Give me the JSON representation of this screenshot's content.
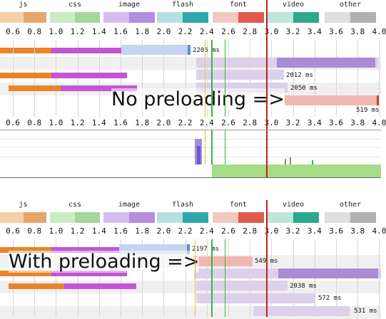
{
  "legend": [
    {
      "label": "js",
      "a": "#f5cfa6",
      "b": "#e8a56b"
    },
    {
      "label": "css",
      "a": "#c9ecc3",
      "b": "#a5d69b"
    },
    {
      "label": "image",
      "a": "#d6bdf0",
      "b": "#b48ce0"
    },
    {
      "label": "flash",
      "a": "#b4e0e2",
      "b": "#2ea8ad"
    },
    {
      "label": "font",
      "a": "#f3c8c2",
      "b": "#e15a4e"
    },
    {
      "label": "video",
      "a": "#bde5d8",
      "b": "#2ea88a"
    },
    {
      "label": "other",
      "a": "#dedede",
      "b": "#b0b0b0"
    }
  ],
  "ticks": [
    "0.6",
    "0.8",
    "1.0",
    "1.2",
    "1.4",
    "1.6",
    "1.8",
    "2.0",
    "2.2",
    "2.4",
    "2.6",
    "2.8",
    "3.0",
    "3.2",
    "3.4",
    "3.6",
    "3.8",
    "4.0"
  ],
  "sections": {
    "top": {
      "overlay": "No preloading =>",
      "labels": [
        "2205 ms",
        "2012 ms",
        "2050 ms",
        "519 ms"
      ]
    },
    "bottom": {
      "overlay": "With preloading =>",
      "labels": [
        "2197 ms",
        "549 ms",
        "2038 ms",
        "572 ms",
        "531 ms"
      ]
    }
  },
  "colors": {
    "orange": "#e8842b",
    "purple": "#c554d6",
    "lightBlue": "#c4d5f0",
    "lavender": "#dcd0ea",
    "lavenderDark": "#a98bd6",
    "pink": "#f0b7b0",
    "startRender": "#e8c23a",
    "domReady": "#3cb43c",
    "onload": "#c81c1c",
    "cpuGreen": "#a6dc86"
  }
}
